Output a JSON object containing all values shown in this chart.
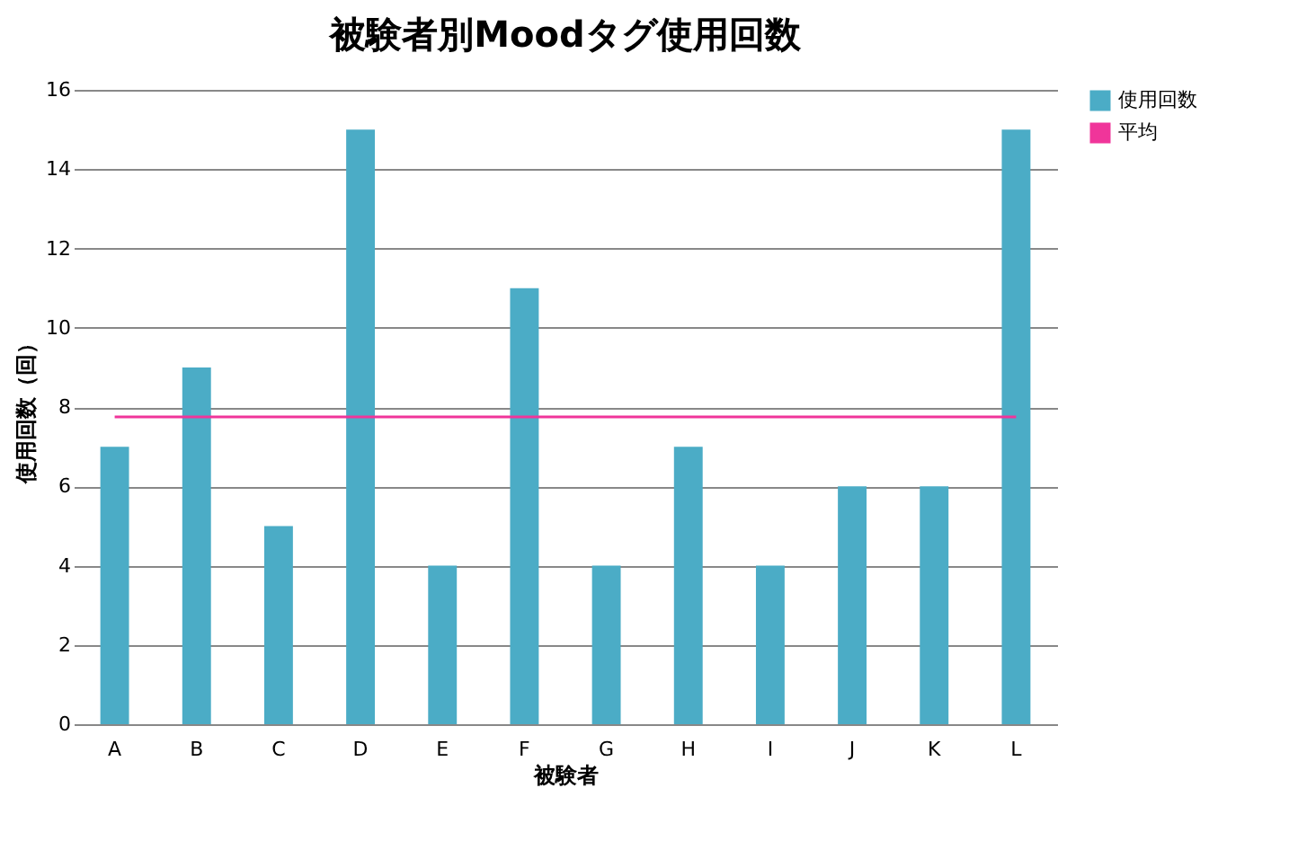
{
  "chart_data": {
    "type": "bar",
    "title": "被験者別Moodタグ使用回数",
    "xlabel": "被験者",
    "ylabel": "使用回数（回）",
    "categories": [
      "A",
      "B",
      "C",
      "D",
      "E",
      "F",
      "G",
      "H",
      "I",
      "J",
      "K",
      "L"
    ],
    "series": [
      {
        "name": "使用回数",
        "color": "#4bacc6",
        "values": [
          7,
          9,
          5,
          15,
          4,
          11,
          4,
          7,
          4,
          6,
          6,
          15
        ]
      },
      {
        "name": "平均",
        "type": "line",
        "color": "#f0359a",
        "values": [
          7.75,
          7.75,
          7.75,
          7.75,
          7.75,
          7.75,
          7.75,
          7.75,
          7.75,
          7.75,
          7.75,
          7.75
        ]
      }
    ],
    "ylim": [
      0,
      16
    ],
    "yticks": [
      0,
      2,
      4,
      6,
      8,
      10,
      12,
      14,
      16
    ],
    "grid": "y",
    "legend": "right"
  }
}
